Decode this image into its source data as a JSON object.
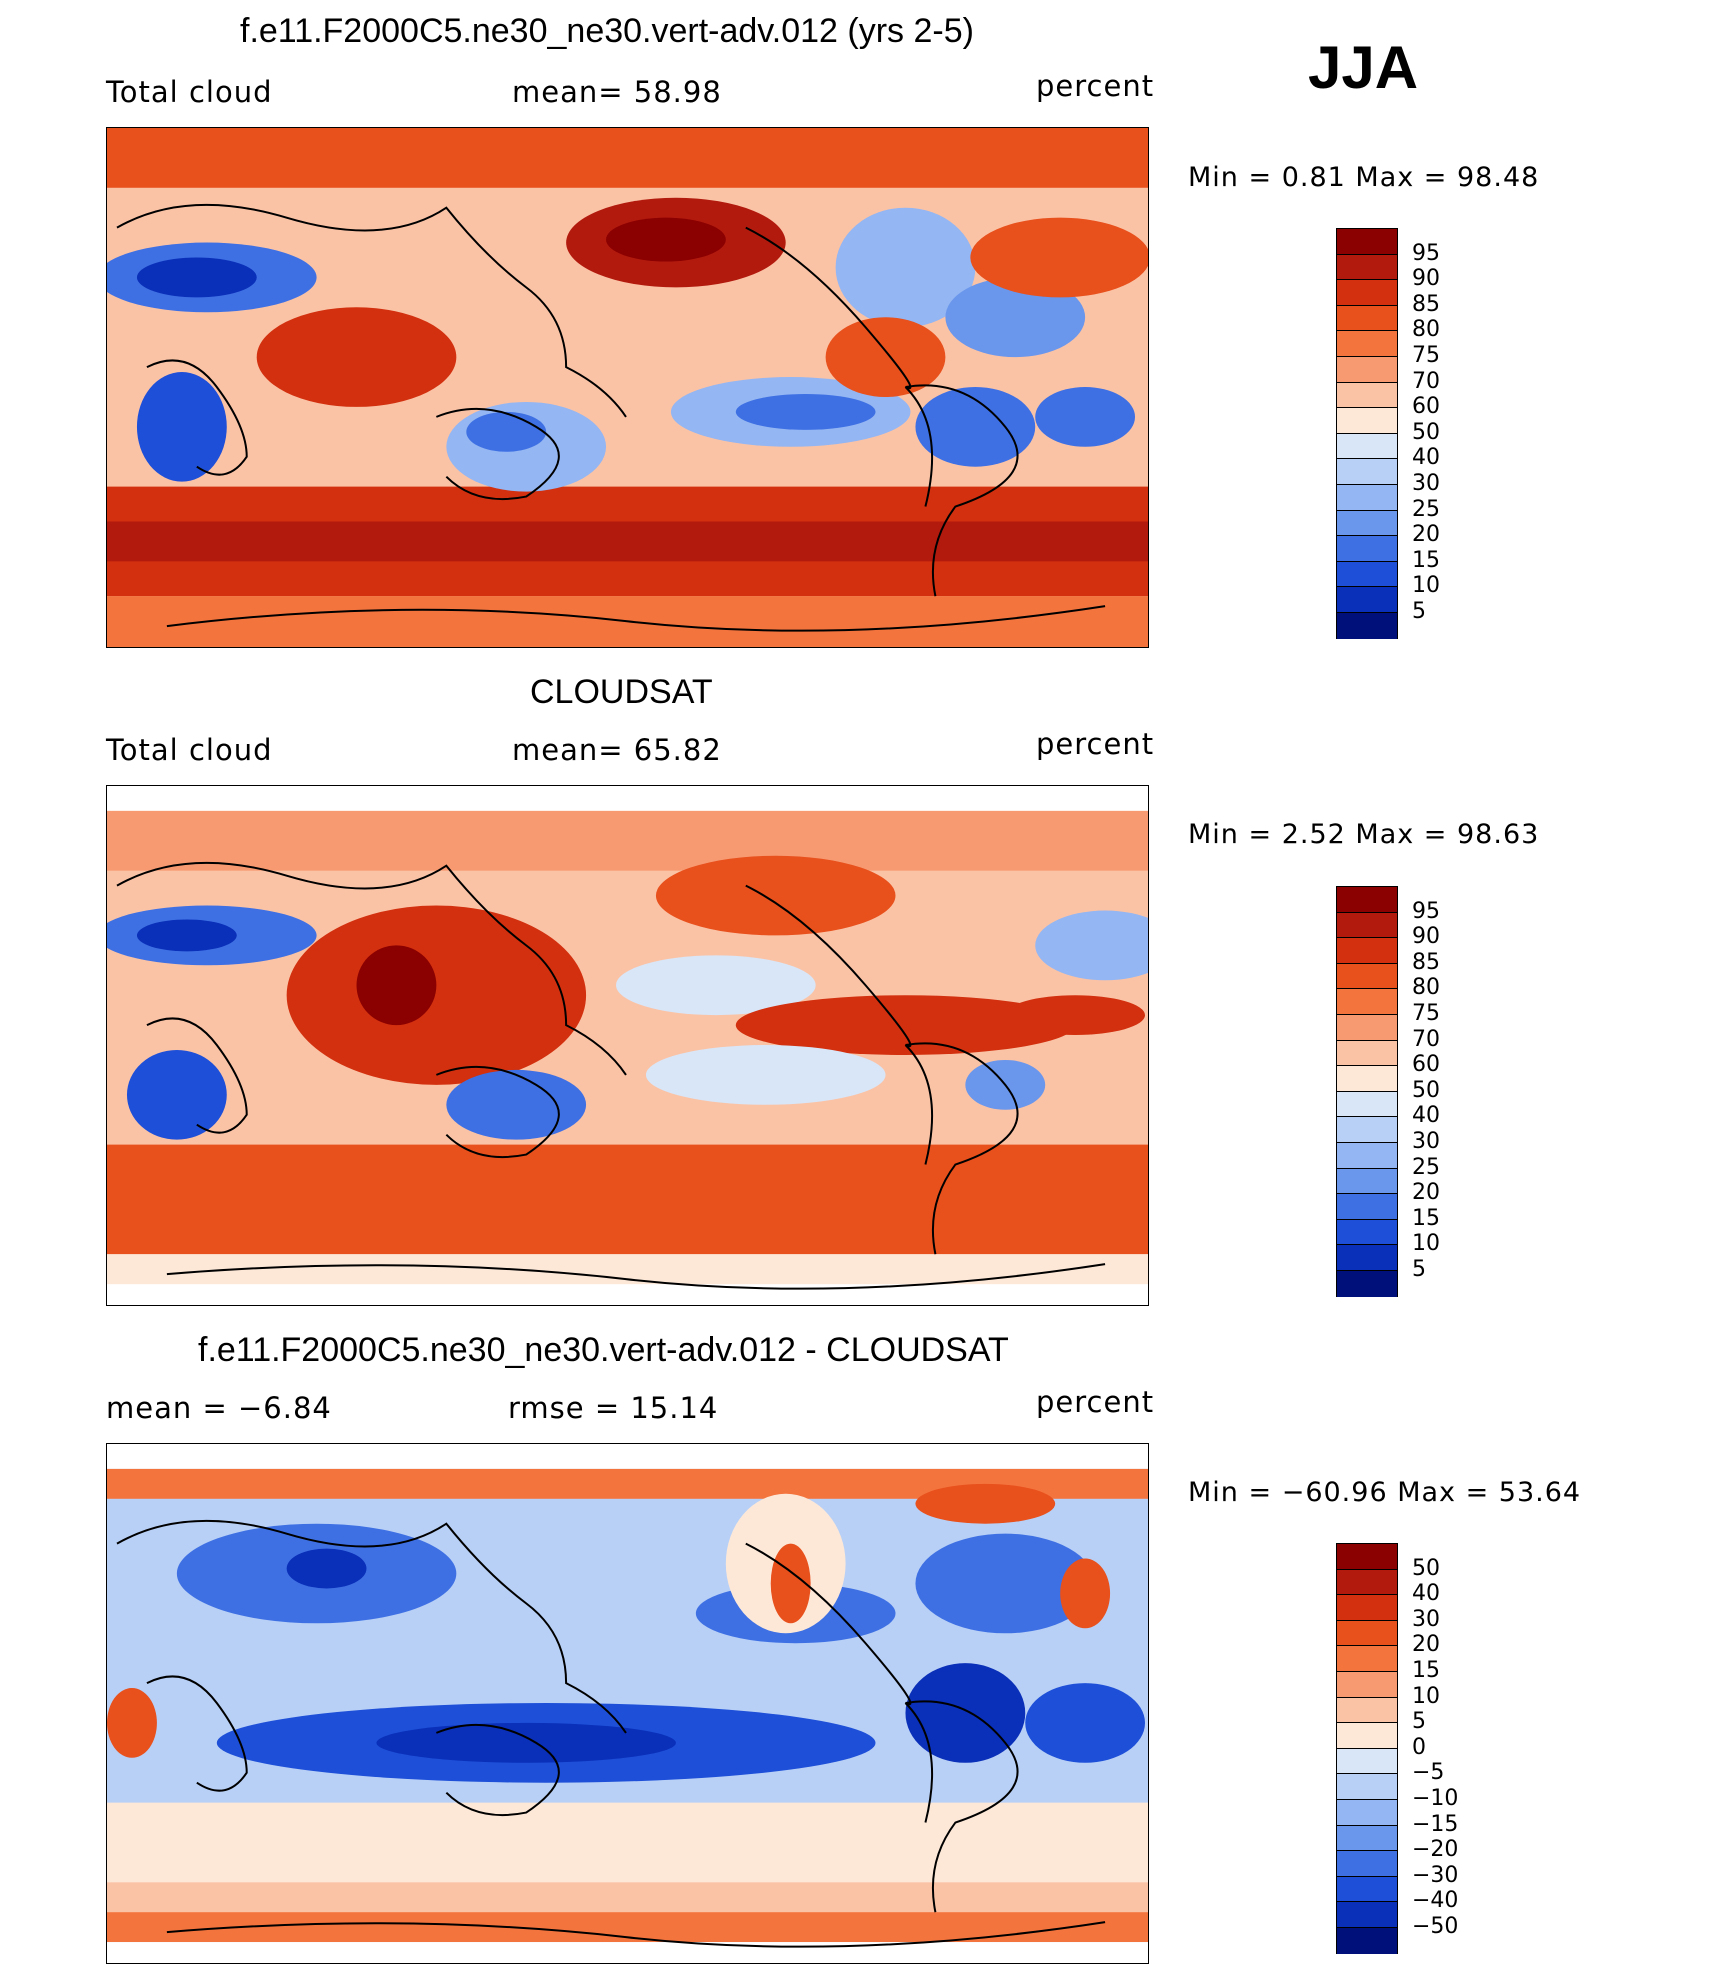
{
  "season": "JJA",
  "panels": [
    {
      "title": "f.e11.F2000C5.ne30_ne30.vert-adv.012 (yrs 2-5)",
      "left_label": "Total cloud",
      "center_label": "mean=   58.98",
      "right_label": "percent",
      "minmax": "Min =    0.81  Max =    98.48",
      "colorbar_labels": [
        "95",
        "90",
        "85",
        "80",
        "75",
        "70",
        "60",
        "50",
        "40",
        "30",
        "25",
        "20",
        "15",
        "10",
        "5"
      ]
    },
    {
      "title": "CLOUDSAT",
      "left_label": "Total cloud",
      "center_label": "mean=   65.82",
      "right_label": "percent",
      "minmax": "Min =    2.52  Max =    98.63",
      "colorbar_labels": [
        "95",
        "90",
        "85",
        "80",
        "75",
        "70",
        "60",
        "50",
        "40",
        "30",
        "25",
        "20",
        "15",
        "10",
        "5"
      ]
    },
    {
      "title": "f.e11.F2000C5.ne30_ne30.vert-adv.012 - CLOUDSAT",
      "left_label": "mean  =   −6.84",
      "center_label": "rmse  =   15.14",
      "right_label": "percent",
      "minmax": "Min = −60.96  Max =   53.64",
      "colorbar_labels": [
        "50",
        "40",
        "30",
        "20",
        "15",
        "10",
        "5",
        "0",
        "−5",
        "−10",
        "−15",
        "−20",
        "−30",
        "−40",
        "−50"
      ]
    }
  ],
  "colorbar_colors": [
    "#8b0000",
    "#b21a0e",
    "#d2300e",
    "#e8501c",
    "#f4743e",
    "#f79a72",
    "#fbc3a6",
    "#fde8d8",
    "#d8e6f8",
    "#b8d0f6",
    "#94b6f2",
    "#6a96ec",
    "#3e70e4",
    "#1d4fd8",
    "#0a2fb8",
    "#00107a"
  ]
}
